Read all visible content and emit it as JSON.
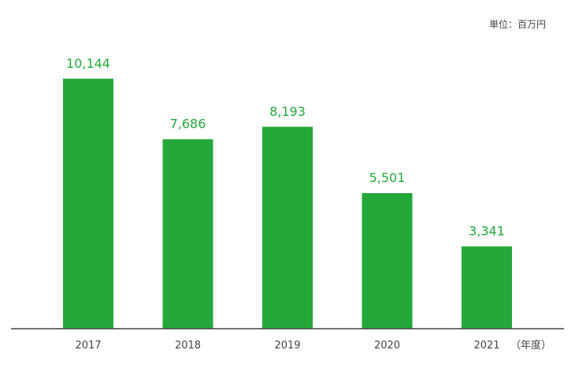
{
  "colors": {
    "bar": "#24a83a",
    "value_label": "#24a83a",
    "axis_line": "#444444",
    "tick_text": "#444444",
    "unit_text": "#444444"
  },
  "chart_data": {
    "type": "bar",
    "categories": [
      "2017",
      "2018",
      "2019",
      "2020",
      "2021"
    ],
    "values": [
      10144,
      7686,
      8193,
      5501,
      3341
    ],
    "value_labels": [
      "10,144",
      "7,686",
      "8,193",
      "5,501",
      "3,341"
    ],
    "title": "",
    "xlabel": "（年度）",
    "ylabel": "",
    "unit_label": "単位：百万円",
    "ylim": [
      0,
      11000
    ],
    "grid": false,
    "legend": "none"
  }
}
